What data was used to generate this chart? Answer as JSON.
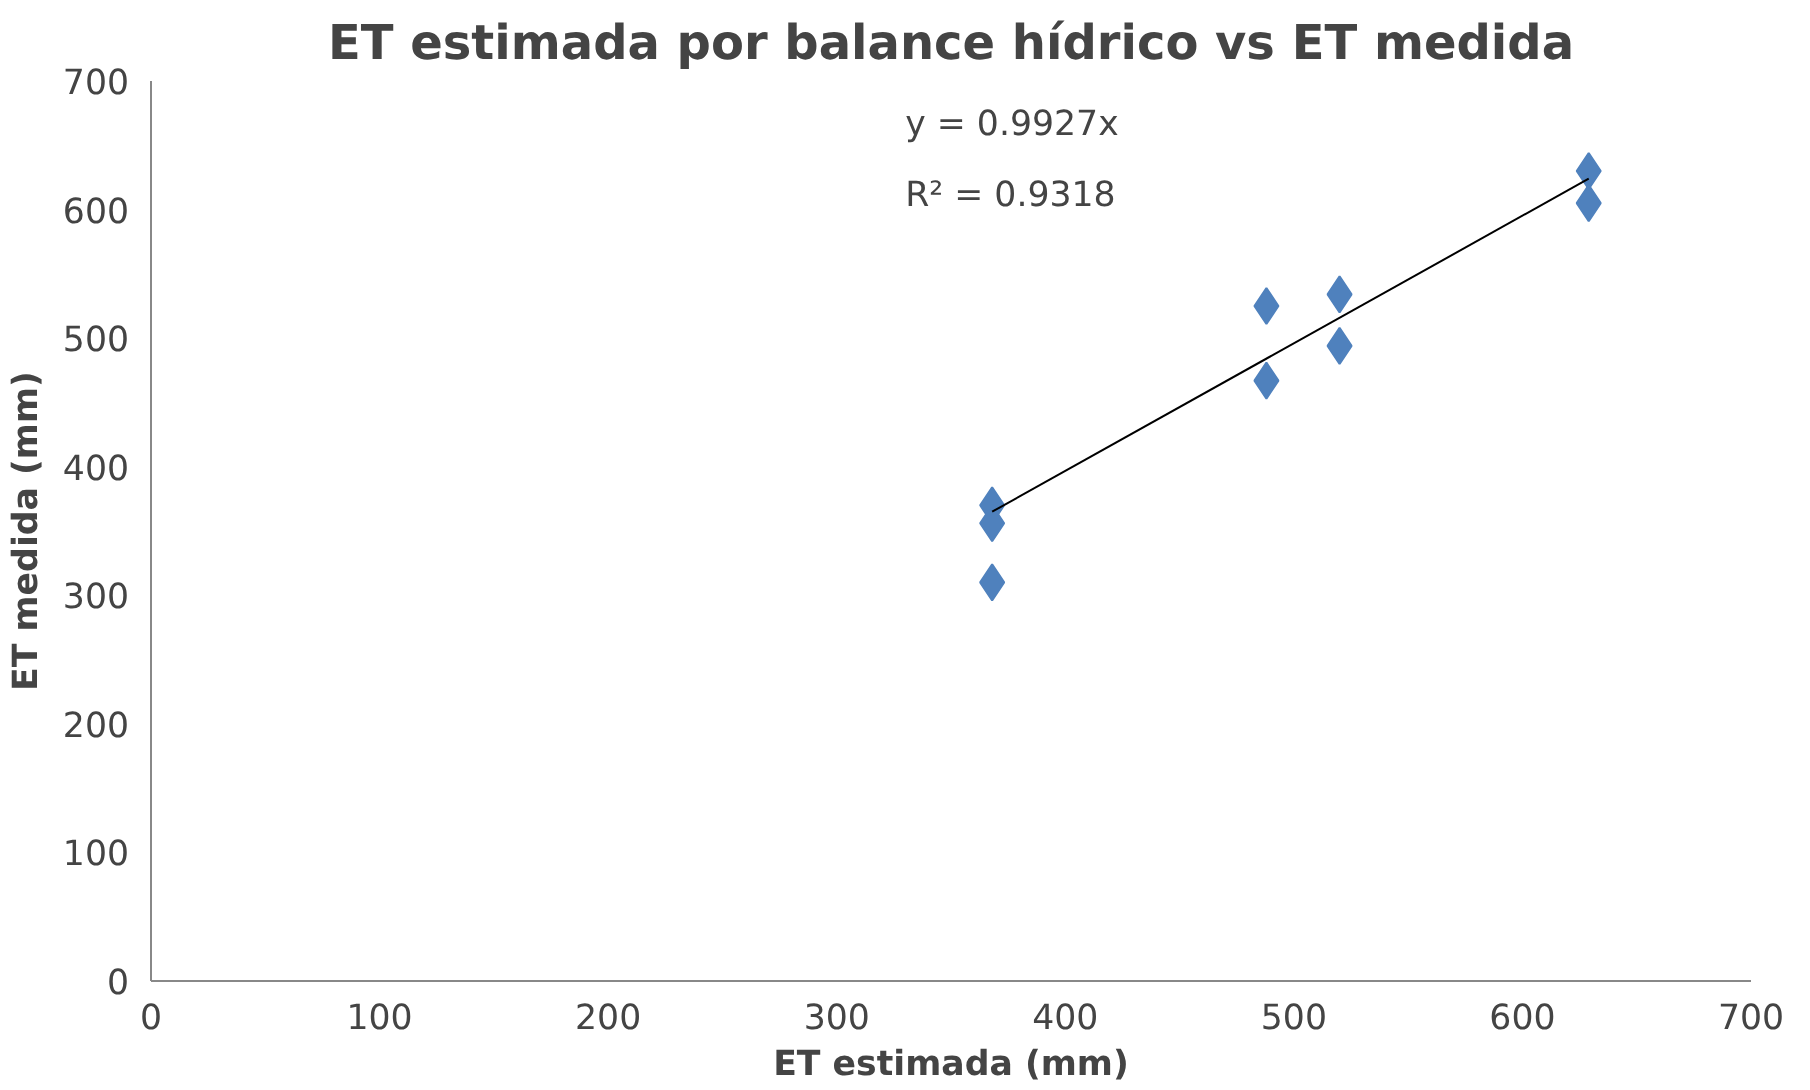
{
  "chart_data": {
    "type": "scatter",
    "title": "ET estimada por balance hídrico vs ET medida",
    "xlabel": "ET estimada (mm)",
    "ylabel": "ET medida (mm)",
    "xlim": [
      0,
      700
    ],
    "ylim": [
      0,
      700
    ],
    "xticks": [
      0,
      100,
      200,
      300,
      400,
      500,
      600,
      700
    ],
    "yticks": [
      0,
      100,
      200,
      300,
      400,
      500,
      600,
      700
    ],
    "grid": false,
    "series": [
      {
        "color": "#4f81bd",
        "marker": "diamond",
        "x": [
          368,
          368,
          368,
          488,
          488,
          520,
          520,
          629,
          629
        ],
        "values": [
          370,
          356,
          310,
          525,
          467,
          534,
          494,
          630,
          605
        ]
      },
      {
        "type": "line",
        "color": "#000000",
        "x": [
          368,
          629
        ],
        "values": [
          365,
          624
        ],
        "line_style": "solid"
      }
    ],
    "annotations": [
      "y = 0.9927x",
      "R² = 0.9318"
    ]
  }
}
